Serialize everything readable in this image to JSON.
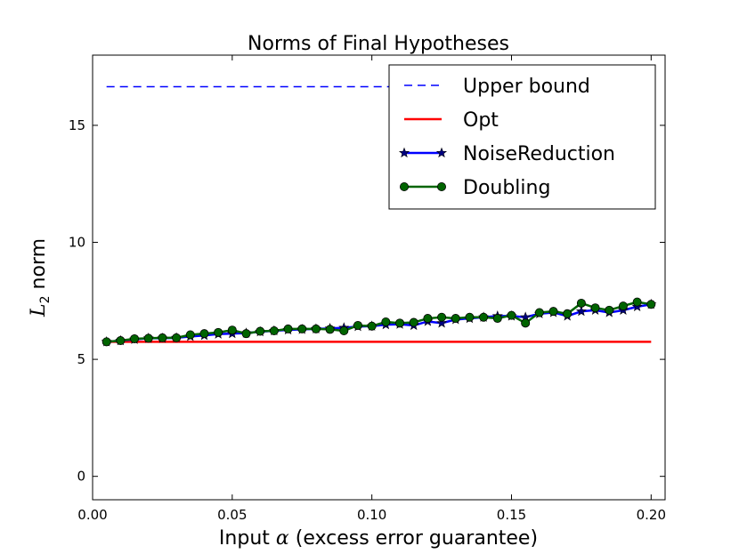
{
  "chart_data": {
    "type": "line",
    "title": "Norms of Final Hypotheses",
    "xlabel_prefix": "Input",
    "xlabel_symbol": "α",
    "xlabel_suffix": "(excess error guarantee)",
    "ylabel_symbol": "L",
    "ylabel_subscript": "2",
    "ylabel_suffix": "norm",
    "xlim": [
      0.0,
      0.205
    ],
    "ylim": [
      -1.0,
      18.0
    ],
    "xticks": [
      "0.00",
      "0.05",
      "0.10",
      "0.15",
      "0.20"
    ],
    "yticks": [
      "0",
      "5",
      "10",
      "15"
    ],
    "legend_position": "top-right",
    "x": [
      0.005,
      0.01,
      0.015,
      0.02,
      0.025,
      0.03,
      0.035,
      0.04,
      0.045,
      0.05,
      0.055,
      0.06,
      0.065,
      0.07,
      0.075,
      0.08,
      0.085,
      0.09,
      0.095,
      0.1,
      0.105,
      0.11,
      0.115,
      0.12,
      0.125,
      0.13,
      0.135,
      0.14,
      0.145,
      0.15,
      0.155,
      0.16,
      0.165,
      0.17,
      0.175,
      0.18,
      0.185,
      0.19,
      0.195,
      0.2
    ],
    "series": [
      {
        "name": "Upper bound",
        "color": "#0000ff",
        "style": "dashed",
        "x": [
          0.005,
          0.2
        ],
        "values": [
          16.65,
          16.65
        ]
      },
      {
        "name": "Opt",
        "color": "#ff0000",
        "style": "solid",
        "x": [
          0.005,
          0.2
        ],
        "values": [
          5.75,
          5.75
        ]
      },
      {
        "name": "NoiseReduction",
        "color": "#0000ff",
        "style": "solid-star",
        "values": [
          5.75,
          5.8,
          5.85,
          5.9,
          5.9,
          5.92,
          5.98,
          6.02,
          6.08,
          6.1,
          6.12,
          6.18,
          6.22,
          6.26,
          6.28,
          6.3,
          6.32,
          6.35,
          6.4,
          6.42,
          6.48,
          6.5,
          6.45,
          6.62,
          6.55,
          6.7,
          6.75,
          6.8,
          6.85,
          6.85,
          6.8,
          6.95,
          7.0,
          6.85,
          7.05,
          7.1,
          7.0,
          7.1,
          7.25,
          7.35
        ]
      },
      {
        "name": "Doubling",
        "color": "#006400",
        "style": "solid-circle",
        "values": [
          5.75,
          5.8,
          5.88,
          5.9,
          5.92,
          5.92,
          6.05,
          6.1,
          6.15,
          6.25,
          6.1,
          6.2,
          6.22,
          6.3,
          6.3,
          6.3,
          6.28,
          6.22,
          6.45,
          6.42,
          6.6,
          6.55,
          6.58,
          6.75,
          6.8,
          6.75,
          6.8,
          6.8,
          6.75,
          6.88,
          6.55,
          7.0,
          7.05,
          6.95,
          7.4,
          7.2,
          7.1,
          7.28,
          7.45,
          7.35
        ]
      }
    ]
  }
}
